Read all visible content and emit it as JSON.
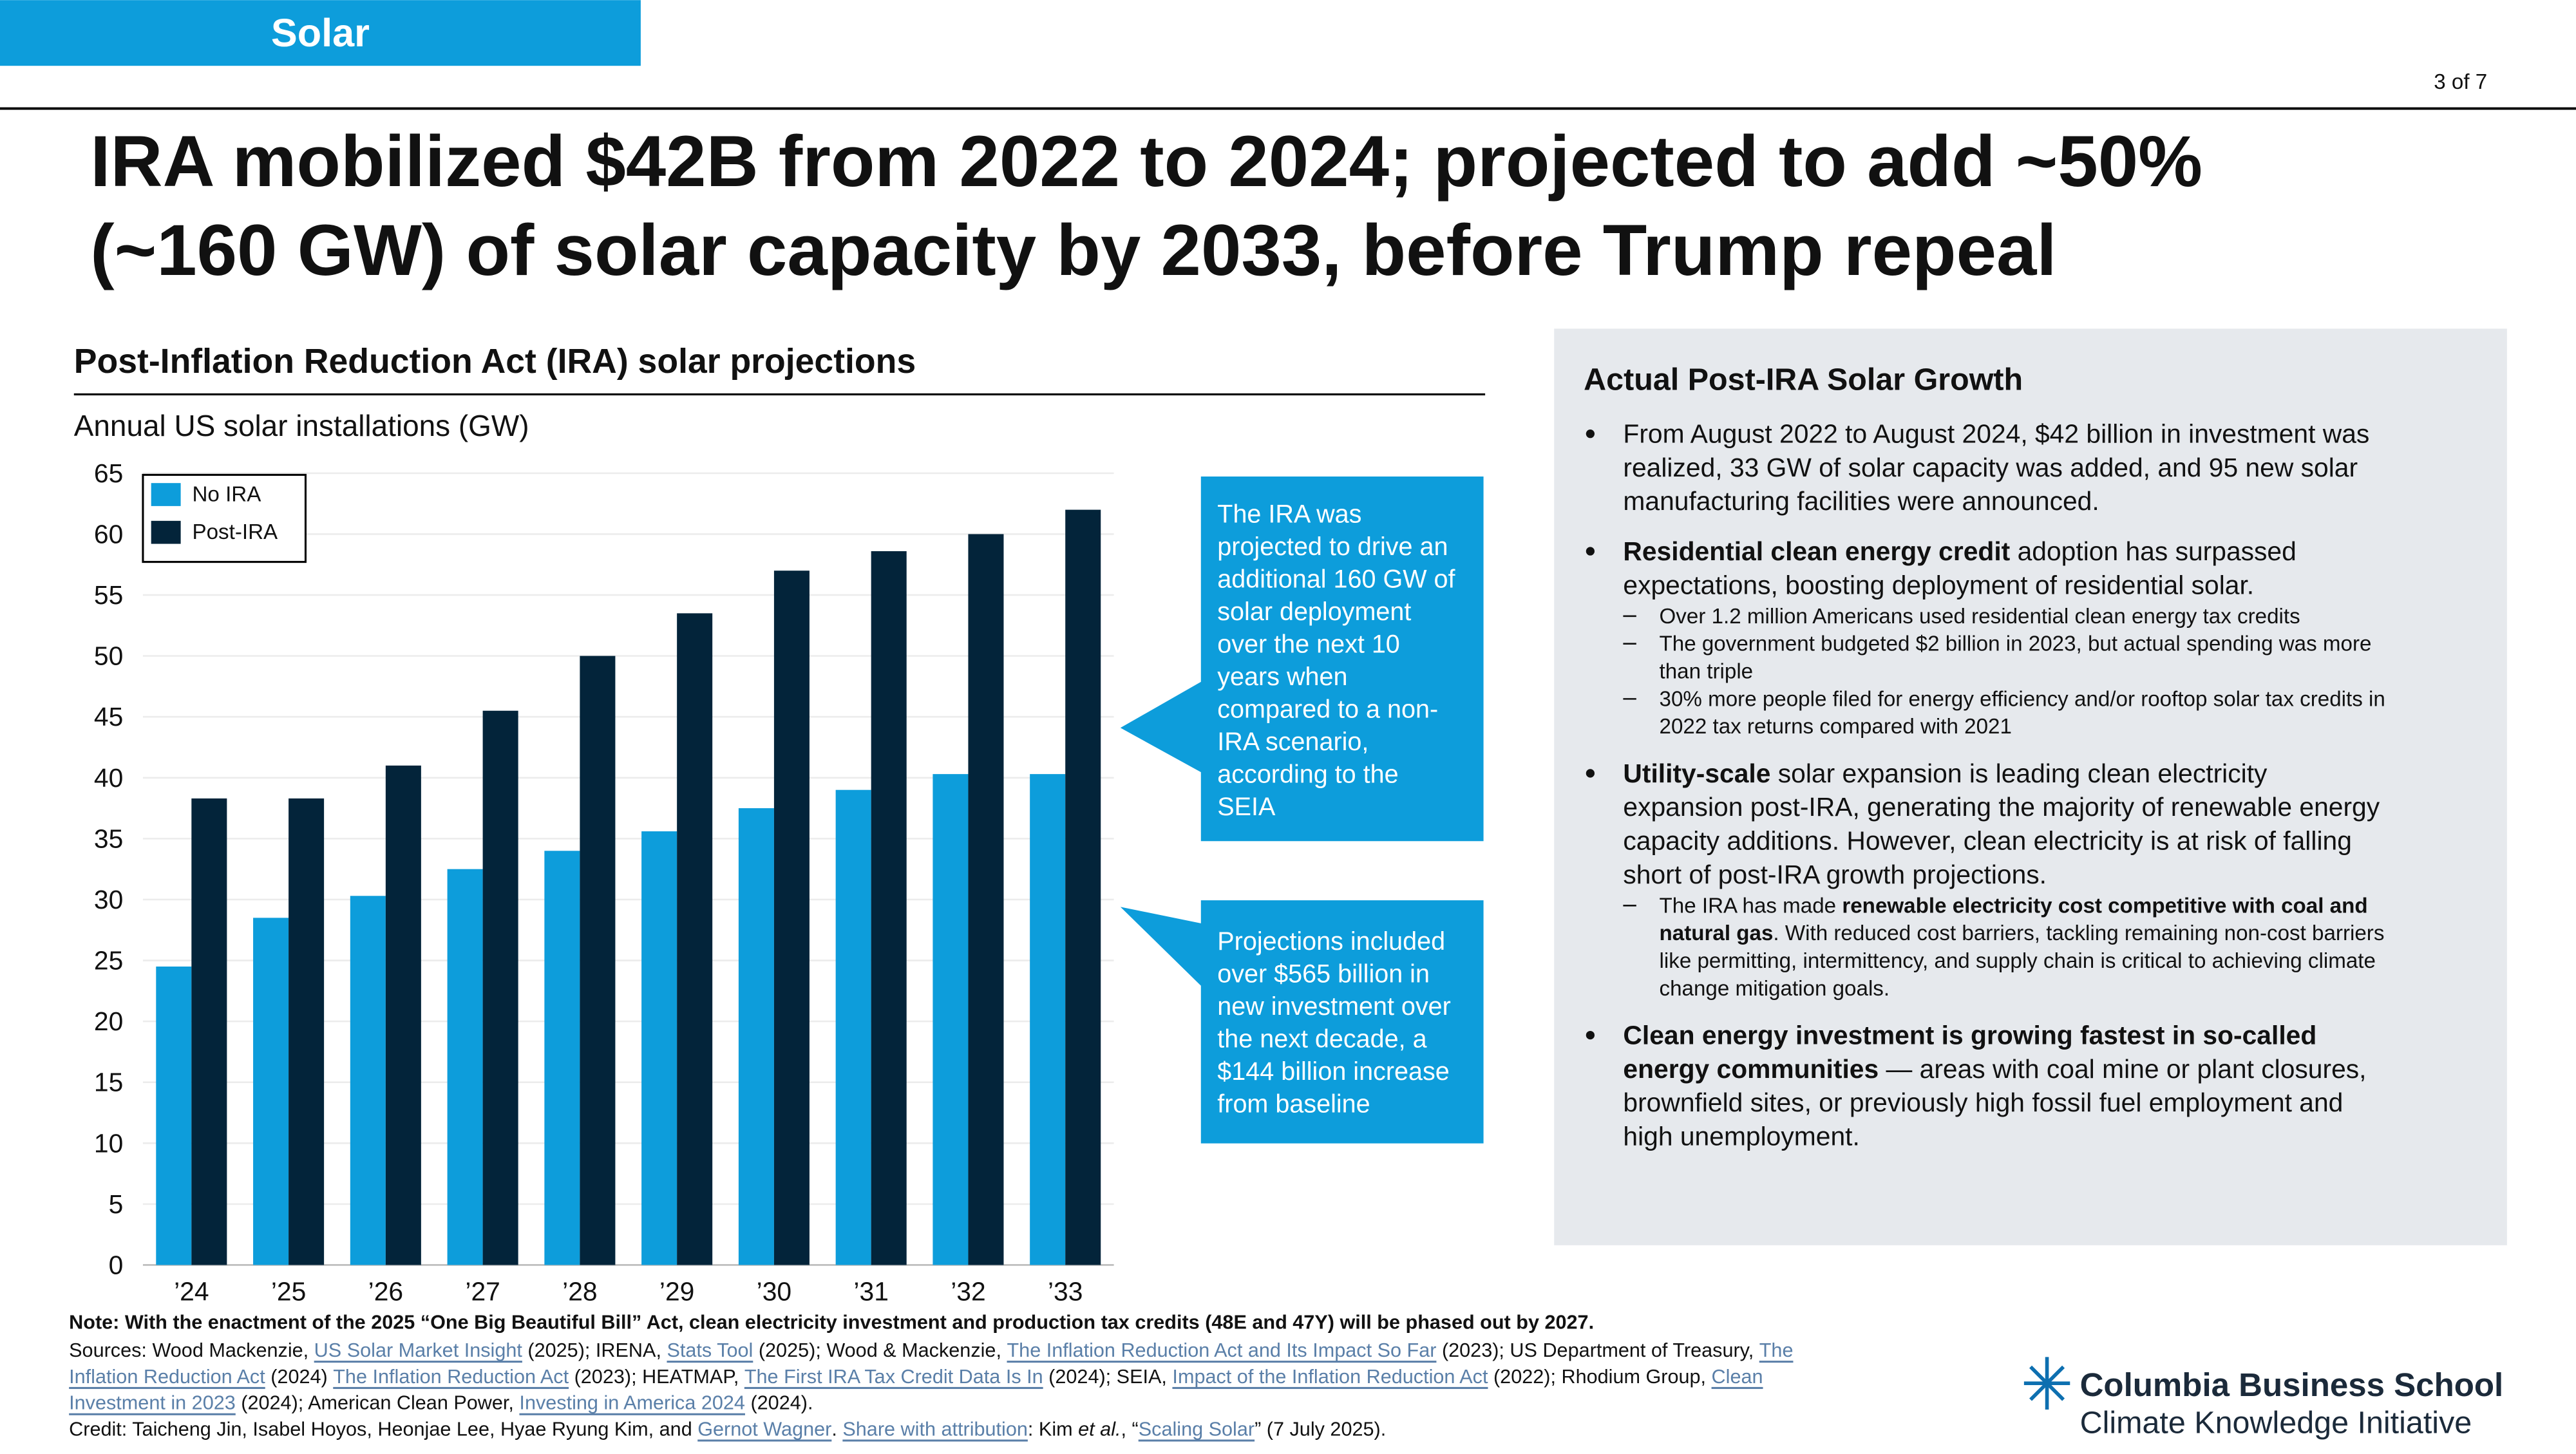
{
  "header": {
    "section": "Solar",
    "page": "3 of 7",
    "title": [
      "IRA mobilized $42B from 2022 to 2024; projected to add ~50%",
      "(~160 GW) of solar capacity by 2033, before Trump repeal"
    ]
  },
  "chart_data": {
    "type": "bar",
    "title": "Post-Inflation Reduction Act (IRA) solar projections",
    "y_label": "Annual US solar installations (GW)",
    "categories": [
      "’24",
      "’25",
      "’26",
      "’27",
      "’28",
      "’29",
      "’30",
      "’31",
      "’32",
      "’33"
    ],
    "series": [
      {
        "name": "No IRA",
        "color": "#0d9ddb",
        "values": [
          24.5,
          28.5,
          30.3,
          32.5,
          34,
          35.6,
          37.5,
          39,
          40.3,
          40.3
        ]
      },
      {
        "name": "Post-IRA",
        "color": "#03243a",
        "values": [
          38.3,
          38.3,
          41,
          45.5,
          50,
          53.5,
          57,
          58.6,
          60,
          62
        ]
      }
    ],
    "ylim": [
      0,
      65
    ],
    "yticks": [
      0,
      5,
      10,
      15,
      20,
      25,
      30,
      35,
      40,
      45,
      50,
      55,
      60,
      65
    ],
    "grid": true,
    "legend": "upper left"
  },
  "callouts": [
    {
      "lines": [
        "The IRA was",
        "projected to drive an",
        "additional 160 GW of",
        "solar deployment",
        "over the next 10",
        "years when",
        "compared to a non-",
        "IRA scenario,",
        "according to the",
        "SEIA"
      ]
    },
    {
      "lines": [
        "Projections included",
        "over $565 billion in",
        "new investment over",
        "the next decade, a",
        "$144 billion increase",
        "from baseline"
      ]
    }
  ],
  "panel": {
    "title": "Actual Post-IRA Solar Growth",
    "bullets": [
      {
        "lines": [
          [
            "From August 2022 to August 2024, $42 billion in investment was"
          ],
          [
            "realized, 33 GW of solar capacity was added, and 95 new solar"
          ],
          [
            "manufacturing facilities were announced."
          ]
        ],
        "subbullets": []
      },
      {
        "lines": [
          [
            {
              "text": "Residential clean energy credit",
              "bold": true
            },
            " adoption has surpassed"
          ],
          [
            "expectations, boosting deployment of residential solar."
          ]
        ],
        "subbullets": [
          {
            "lines": [
              [
                "Over 1.2 million Americans used residential clean energy tax credits"
              ]
            ]
          },
          {
            "lines": [
              [
                "The government budgeted $2 billion in 2023, but actual spending was more"
              ],
              [
                "than triple"
              ]
            ]
          },
          {
            "lines": [
              [
                "30% more people filed for energy efficiency and/or rooftop solar tax credits in"
              ],
              [
                "2022 tax returns compared with 2021"
              ]
            ]
          }
        ]
      },
      {
        "lines": [
          [
            {
              "text": "Utility-scale",
              "bold": true
            },
            " solar expansion is leading clean electricity"
          ],
          [
            "expansion post-IRA, generating the majority of renewable energy"
          ],
          [
            "capacity additions. However, clean electricity is at risk of falling"
          ],
          [
            "short of post-IRA growth projections."
          ]
        ],
        "subbullets": [
          {
            "lines": [
              [
                "The IRA has made ",
                {
                  "text": "renewable electricity cost competitive with coal and",
                  "bold": true
                }
              ],
              [
                {
                  "text": "natural gas",
                  "bold": true
                },
                ". With reduced cost barriers, tackling remaining non-cost barriers"
              ],
              [
                "like permitting, intermittency, and supply chain is critical to achieving climate"
              ],
              [
                "change mitigation goals."
              ]
            ]
          }
        ]
      },
      {
        "lines": [
          [
            {
              "text": "Clean energy investment is growing fastest in so-called",
              "bold": true
            }
          ],
          [
            {
              "text": "energy communities",
              "bold": true
            },
            " — areas with coal mine or plant closures,"
          ],
          [
            "brownfield sites, or previously high fossil fuel employment and"
          ],
          [
            "high unemployment."
          ]
        ],
        "subbullets": []
      }
    ]
  },
  "footer": {
    "note": "Note: With the enactment of the 2025 “One Big Beautiful Bill” Act, clean electricity investment and production tax credits (48E and 47Y) will be phased out by 2027.",
    "sources": [
      [
        "Sources: Wood Mackenzie, ",
        {
          "text": "US Solar Market Insight",
          "link": true
        },
        " (2025); IRENA, ",
        {
          "text": "Stats Tool",
          "link": true
        },
        " (2025); Wood & Mackenzie, ",
        {
          "text": "The Inflation Reduction Act and Its Impact So Far",
          "link": true
        },
        " (2023); US Department of Treasury, ",
        {
          "text": "The",
          "link": true
        }
      ],
      [
        {
          "text": "Inflation Reduction Act",
          "link": true
        },
        " (2024) ",
        {
          "text": "The Inflation Reduction Act",
          "link": true
        },
        " (2023); HEATMAP, ",
        {
          "text": "The First IRA Tax Credit Data Is In",
          "link": true
        },
        " (2024); SEIA, ",
        {
          "text": "Impact of the Inflation Reduction Act",
          "link": true
        },
        " (2022); Rhodium Group, ",
        {
          "text": "Clean",
          "link": true
        }
      ],
      [
        {
          "text": "Investment in 2023",
          "link": true
        },
        " (2024); American Clean Power, ",
        {
          "text": "Investing in America 2024",
          "link": true
        },
        " (2024)."
      ]
    ],
    "credit": [
      "Credit: Taicheng Jin, Isabel Hoyos, Heonjae Lee, Hyae Ryung Kim, and ",
      {
        "text": "Gernot Wagner",
        "link": true
      },
      ". ",
      {
        "text": "Share with attribution",
        "link": true
      },
      ": Kim ",
      {
        "text": "et al.",
        "italic": true
      },
      ", “",
      {
        "text": "Scaling Solar",
        "link": true
      },
      "” (7 July 2025)."
    ]
  },
  "logo": {
    "name": "Columbia Business School",
    "subtitle": "Climate Knowledge Initiative"
  }
}
